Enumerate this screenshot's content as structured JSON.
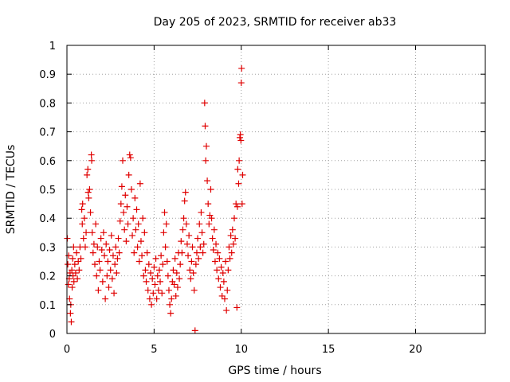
{
  "chart_data": {
    "type": "scatter",
    "title": "Day 205 of 2023, SRMTID for receiver ab33",
    "xlabel": "GPS time / hours",
    "ylabel": "SRMTID / TECUs",
    "xlim": [
      0,
      24
    ],
    "ylim": [
      0,
      1
    ],
    "xticks": [
      0,
      5,
      10,
      15,
      20
    ],
    "yticks": [
      0,
      0.1,
      0.2,
      0.3,
      0.4,
      0.5,
      0.6,
      0.7,
      0.8,
      0.9,
      1
    ],
    "ytick_labels": [
      "0",
      "0.1",
      "0.2",
      "0.3",
      "0.4",
      "0.5",
      "0.6",
      "0.7",
      "0.8",
      "0.9",
      "1"
    ],
    "grid": true,
    "marker": "plus",
    "color": "#e00000",
    "series": [
      {
        "name": "SRMTID",
        "points": [
          [
            0.02,
            0.33
          ],
          [
            0.05,
            0.24
          ],
          [
            0.08,
            0.17
          ],
          [
            0.1,
            0.27
          ],
          [
            0.13,
            0.19
          ],
          [
            0.15,
            0.12
          ],
          [
            0.18,
            0.21
          ],
          [
            0.2,
            0.07
          ],
          [
            0.22,
            0.1
          ],
          [
            0.25,
            0.04
          ],
          [
            0.28,
            0.22
          ],
          [
            0.3,
            0.16
          ],
          [
            0.33,
            0.26
          ],
          [
            0.35,
            0.2
          ],
          [
            0.38,
            0.3
          ],
          [
            0.4,
            0.18
          ],
          [
            0.45,
            0.24
          ],
          [
            0.5,
            0.21
          ],
          [
            0.55,
            0.28
          ],
          [
            0.6,
            0.19
          ],
          [
            0.65,
            0.25
          ],
          [
            0.7,
            0.22
          ],
          [
            0.75,
            0.3
          ],
          [
            0.8,
            0.26
          ],
          [
            0.85,
            0.43
          ],
          [
            0.88,
            0.38
          ],
          [
            0.9,
            0.45
          ],
          [
            0.95,
            0.33
          ],
          [
            1.0,
            0.4
          ],
          [
            1.05,
            0.3
          ],
          [
            1.1,
            0.35
          ],
          [
            1.15,
            0.55
          ],
          [
            1.2,
            0.57
          ],
          [
            1.22,
            0.49
          ],
          [
            1.25,
            0.47
          ],
          [
            1.3,
            0.5
          ],
          [
            1.35,
            0.42
          ],
          [
            1.4,
            0.62
          ],
          [
            1.42,
            0.6
          ],
          [
            1.45,
            0.35
          ],
          [
            1.5,
            0.28
          ],
          [
            1.55,
            0.31
          ],
          [
            1.6,
            0.24
          ],
          [
            1.65,
            0.38
          ],
          [
            1.7,
            0.2
          ],
          [
            1.75,
            0.3
          ],
          [
            1.8,
            0.15
          ],
          [
            1.85,
            0.25
          ],
          [
            1.9,
            0.22
          ],
          [
            1.95,
            0.33
          ],
          [
            2.0,
            0.29
          ],
          [
            2.05,
            0.18
          ],
          [
            2.1,
            0.35
          ],
          [
            2.15,
            0.27
          ],
          [
            2.2,
            0.12
          ],
          [
            2.25,
            0.31
          ],
          [
            2.3,
            0.2
          ],
          [
            2.35,
            0.25
          ],
          [
            2.4,
            0.16
          ],
          [
            2.45,
            0.29
          ],
          [
            2.5,
            0.22
          ],
          [
            2.55,
            0.34
          ],
          [
            2.6,
            0.19
          ],
          [
            2.65,
            0.27
          ],
          [
            2.7,
            0.14
          ],
          [
            2.75,
            0.24
          ],
          [
            2.8,
            0.3
          ],
          [
            2.85,
            0.21
          ],
          [
            2.9,
            0.26
          ],
          [
            2.95,
            0.33
          ],
          [
            3.0,
            0.28
          ],
          [
            3.05,
            0.39
          ],
          [
            3.1,
            0.45
          ],
          [
            3.15,
            0.51
          ],
          [
            3.2,
            0.6
          ],
          [
            3.25,
            0.42
          ],
          [
            3.3,
            0.36
          ],
          [
            3.35,
            0.48
          ],
          [
            3.4,
            0.32
          ],
          [
            3.45,
            0.44
          ],
          [
            3.5,
            0.38
          ],
          [
            3.55,
            0.55
          ],
          [
            3.6,
            0.62
          ],
          [
            3.65,
            0.61
          ],
          [
            3.7,
            0.5
          ],
          [
            3.75,
            0.34
          ],
          [
            3.8,
            0.4
          ],
          [
            3.85,
            0.28
          ],
          [
            3.9,
            0.47
          ],
          [
            3.95,
            0.36
          ],
          [
            4.0,
            0.43
          ],
          [
            4.05,
            0.3
          ],
          [
            4.1,
            0.38
          ],
          [
            4.15,
            0.25
          ],
          [
            4.2,
            0.52
          ],
          [
            4.25,
            0.32
          ],
          [
            4.3,
            0.27
          ],
          [
            4.35,
            0.4
          ],
          [
            4.4,
            0.2
          ],
          [
            4.45,
            0.35
          ],
          [
            4.5,
            0.22
          ],
          [
            4.55,
            0.18
          ],
          [
            4.6,
            0.28
          ],
          [
            4.65,
            0.15
          ],
          [
            4.7,
            0.24
          ],
          [
            4.75,
            0.12
          ],
          [
            4.8,
            0.21
          ],
          [
            4.85,
            0.1
          ],
          [
            4.9,
            0.19
          ],
          [
            4.95,
            0.14
          ],
          [
            5.0,
            0.23
          ],
          [
            5.05,
            0.17
          ],
          [
            5.1,
            0.26
          ],
          [
            5.15,
            0.12
          ],
          [
            5.2,
            0.2
          ],
          [
            5.25,
            0.15
          ],
          [
            5.3,
            0.22
          ],
          [
            5.35,
            0.18
          ],
          [
            5.4,
            0.27
          ],
          [
            5.45,
            0.14
          ],
          [
            5.5,
            0.24
          ],
          [
            5.55,
            0.35
          ],
          [
            5.6,
            0.42
          ],
          [
            5.65,
            0.3
          ],
          [
            5.7,
            0.38
          ],
          [
            5.75,
            0.25
          ],
          [
            5.8,
            0.2
          ],
          [
            5.85,
            0.15
          ],
          [
            5.9,
            0.1
          ],
          [
            5.95,
            0.07
          ],
          [
            6.0,
            0.12
          ],
          [
            6.05,
            0.18
          ],
          [
            6.1,
            0.22
          ],
          [
            6.15,
            0.17
          ],
          [
            6.2,
            0.26
          ],
          [
            6.25,
            0.13
          ],
          [
            6.3,
            0.21
          ],
          [
            6.35,
            0.16
          ],
          [
            6.4,
            0.28
          ],
          [
            6.45,
            0.19
          ],
          [
            6.5,
            0.24
          ],
          [
            6.55,
            0.32
          ],
          [
            6.6,
            0.28
          ],
          [
            6.65,
            0.36
          ],
          [
            6.7,
            0.4
          ],
          [
            6.75,
            0.46
          ],
          [
            6.8,
            0.49
          ],
          [
            6.85,
            0.38
          ],
          [
            6.9,
            0.31
          ],
          [
            6.95,
            0.27
          ],
          [
            7.0,
            0.34
          ],
          [
            7.05,
            0.22
          ],
          [
            7.1,
            0.19
          ],
          [
            7.15,
            0.25
          ],
          [
            7.2,
            0.3
          ],
          [
            7.25,
            0.21
          ],
          [
            7.3,
            0.15
          ],
          [
            7.35,
            0.01
          ],
          [
            7.4,
            0.24
          ],
          [
            7.45,
            0.28
          ],
          [
            7.5,
            0.33
          ],
          [
            7.55,
            0.26
          ],
          [
            7.6,
            0.38
          ],
          [
            7.65,
            0.3
          ],
          [
            7.7,
            0.42
          ],
          [
            7.75,
            0.35
          ],
          [
            7.8,
            0.28
          ],
          [
            7.85,
            0.31
          ],
          [
            7.9,
            0.8
          ],
          [
            7.93,
            0.72
          ],
          [
            7.96,
            0.6
          ],
          [
            8.0,
            0.65
          ],
          [
            8.05,
            0.53
          ],
          [
            8.1,
            0.45
          ],
          [
            8.15,
            0.38
          ],
          [
            8.2,
            0.41
          ],
          [
            8.25,
            0.5
          ],
          [
            8.3,
            0.4
          ],
          [
            8.35,
            0.33
          ],
          [
            8.4,
            0.29
          ],
          [
            8.45,
            0.36
          ],
          [
            8.5,
            0.25
          ],
          [
            8.55,
            0.31
          ],
          [
            8.6,
            0.22
          ],
          [
            8.65,
            0.28
          ],
          [
            8.7,
            0.19
          ],
          [
            8.75,
            0.26
          ],
          [
            8.8,
            0.16
          ],
          [
            8.85,
            0.23
          ],
          [
            8.9,
            0.13
          ],
          [
            8.95,
            0.21
          ],
          [
            9.0,
            0.18
          ],
          [
            9.05,
            0.12
          ],
          [
            9.1,
            0.25
          ],
          [
            9.15,
            0.08
          ],
          [
            9.2,
            0.15
          ],
          [
            9.25,
            0.22
          ],
          [
            9.3,
            0.3
          ],
          [
            9.35,
            0.26
          ],
          [
            9.4,
            0.34
          ],
          [
            9.45,
            0.28
          ],
          [
            9.5,
            0.36
          ],
          [
            9.55,
            0.31
          ],
          [
            9.6,
            0.4
          ],
          [
            9.65,
            0.33
          ],
          [
            9.7,
            0.45
          ],
          [
            9.75,
            0.09
          ],
          [
            9.78,
            0.44
          ],
          [
            9.8,
            0.57
          ],
          [
            9.85,
            0.52
          ],
          [
            9.88,
            0.6
          ],
          [
            9.92,
            0.68
          ],
          [
            9.95,
            0.69
          ],
          [
            9.98,
            0.67
          ],
          [
            10.0,
            0.87
          ],
          [
            10.02,
            0.92
          ],
          [
            10.05,
            0.45
          ],
          [
            10.08,
            0.55
          ]
        ]
      }
    ]
  }
}
